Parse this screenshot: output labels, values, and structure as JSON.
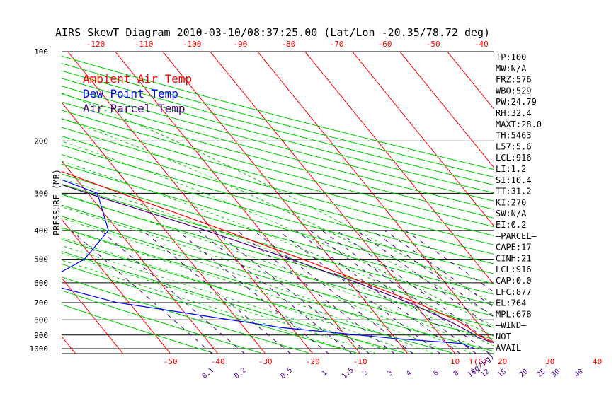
{
  "chart_data": {
    "type": "line",
    "title": "AIRS SkewT Diagram 2010-03-10/08:37:25.00 (Lat/Lon -20.35/78.72 deg)",
    "ylabel": "PRESSURE (MB)",
    "xlabel": "T(C)",
    "mixing_ratio_unit": "(g/kg)",
    "y_ticks": [
      "100",
      "200",
      "300",
      "400",
      "500",
      "600",
      "700",
      "800",
      "900",
      "1000"
    ],
    "top_ticks": [
      "-120",
      "-110",
      "-100",
      "-90",
      "-80",
      "-70",
      "-60",
      "-50",
      "-40"
    ],
    "bottom_ticks": [
      "-50",
      "-40",
      "-30",
      "-20",
      "-10",
      "10",
      "20",
      "30",
      "40"
    ],
    "mixing_ratio_ticks": [
      "0.1",
      "0.2",
      "0.5",
      "1",
      "1.5",
      "2",
      "3",
      "4",
      "6",
      "8",
      "10",
      "12",
      "15",
      "20",
      "25",
      "30",
      "40"
    ],
    "legend": [
      {
        "name": "Ambient Air Temp",
        "color": "#ff0000"
      },
      {
        "name": "Dew Point Temp",
        "color": "#0000ff"
      },
      {
        "name": "Air Parcel Temp",
        "color": "#4b0082"
      }
    ],
    "series": [
      {
        "name": "Ambient Air Temp",
        "points": [
          {
            "p": 1000,
            "t": 25.0
          },
          {
            "p": 975,
            "t": 22.5
          },
          {
            "p": 950,
            "t": 20.0
          },
          {
            "p": 925,
            "t": 19.0
          },
          {
            "p": 900,
            "t": 18.0
          },
          {
            "p": 850,
            "t": 17.3
          },
          {
            "p": 800,
            "t": 16.0
          },
          {
            "p": 700,
            "t": 10.5
          },
          {
            "p": 600,
            "t": 3.0
          },
          {
            "p": 500,
            "t": -6.0
          },
          {
            "p": 400,
            "t": -17.5
          },
          {
            "p": 300,
            "t": -33.0
          },
          {
            "p": 250,
            "t": -42.5
          },
          {
            "p": 200,
            "t": -53.5
          },
          {
            "p": 150,
            "t": -69.0
          },
          {
            "p": 130,
            "t": -76.0
          },
          {
            "p": 115,
            "t": -78.0
          },
          {
            "p": 100,
            "t": -77.0
          }
        ]
      },
      {
        "name": "Dew Point Temp",
        "points": [
          {
            "p": 1000,
            "t": 15.0
          },
          {
            "p": 960,
            "t": 13.0
          },
          {
            "p": 925,
            "t": 0.0
          },
          {
            "p": 850,
            "t": -22.0
          },
          {
            "p": 700,
            "t": -52.5
          },
          {
            "p": 600,
            "t": -65.0
          },
          {
            "p": 500,
            "t": -52.0
          },
          {
            "p": 400,
            "t": -42.0
          },
          {
            "p": 300,
            "t": -38.0
          },
          {
            "p": 250,
            "t": -47.0
          },
          {
            "p": 200,
            "t": -60.0
          },
          {
            "p": 150,
            "t": -82.0
          },
          {
            "p": 130,
            "t": -86.0
          },
          {
            "p": 100,
            "t": -92.0
          }
        ]
      },
      {
        "name": "Air Parcel Temp",
        "points": [
          {
            "p": 1000,
            "t": 25.0
          },
          {
            "p": 950,
            "t": 19.5
          },
          {
            "p": 916,
            "t": 17.5
          },
          {
            "p": 877,
            "t": 16.8
          },
          {
            "p": 800,
            "t": 14.0
          },
          {
            "p": 700,
            "t": 9.0
          },
          {
            "p": 600,
            "t": 1.5
          },
          {
            "p": 500,
            "t": -8.5
          },
          {
            "p": 400,
            "t": -21.5
          },
          {
            "p": 300,
            "t": -40.0
          },
          {
            "p": 250,
            "t": -51.0
          },
          {
            "p": 200,
            "t": -63.0
          },
          {
            "p": 150,
            "t": -80.0
          },
          {
            "p": 100,
            "t": -100.0
          }
        ]
      }
    ]
  },
  "indices": [
    "TP:100",
    "MW:N/A",
    "FRZ:576",
    "WBO:529",
    "PW:24.79",
    "RH:32.4",
    "MAXT:28.0",
    "TH:5463",
    "L57:5.6",
    "LCL:916",
    "LI:1.2",
    "SI:10.4",
    "TT:31.2",
    "KI:270",
    "SW:N/A",
    "EI:0.2",
    "—PARCEL—",
    "CAPE:17",
    "CINH:21",
    "LCL:916",
    "CAP:0.0",
    "LFC:877",
    "EL:764",
    "MPL:678",
    "—WIND—",
    "NOT",
    "AVAIL"
  ],
  "colors": {
    "isotherm": "#ff0000",
    "dry_adiabat": "#00cc00",
    "moist_adiabat": "#00cc00",
    "mixing_ratio": "#4b0082",
    "ambient": "#ff0000",
    "dewpoint": "#0000ff",
    "parcel": "#4b0082",
    "text": "#000000"
  }
}
